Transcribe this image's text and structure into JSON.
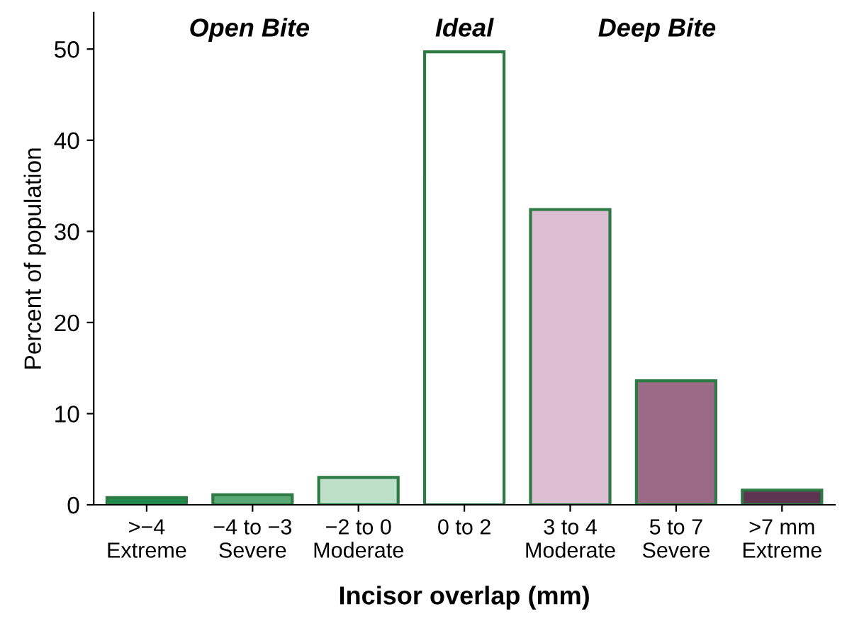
{
  "chart_data": {
    "type": "bar",
    "xlabel": "Incisor overlap (mm)",
    "ylabel": "Percent of population",
    "categories": [
      ">−4\nExtreme",
      "−4 to −3\nSevere",
      "−2 to 0\nModerate",
      "0 to 2",
      "3 to 4\nModerate",
      "5 to 7\nSevere",
      ">7 mm\nExtreme"
    ],
    "values": [
      0.8,
      1.1,
      3.0,
      49.7,
      32.4,
      13.6,
      1.6
    ],
    "colors": [
      "#1f8a4c",
      "#5aa873",
      "#bfe0c8",
      "#ffffff",
      "#dcbfd3",
      "#9b6a87",
      "#5e3550"
    ],
    "ylim": [
      0,
      54
    ],
    "yticks": [
      0,
      10,
      20,
      30,
      40,
      50
    ],
    "grid": false,
    "annotations": [
      "Open Bite",
      "Ideal",
      "Deep Bite"
    ]
  }
}
